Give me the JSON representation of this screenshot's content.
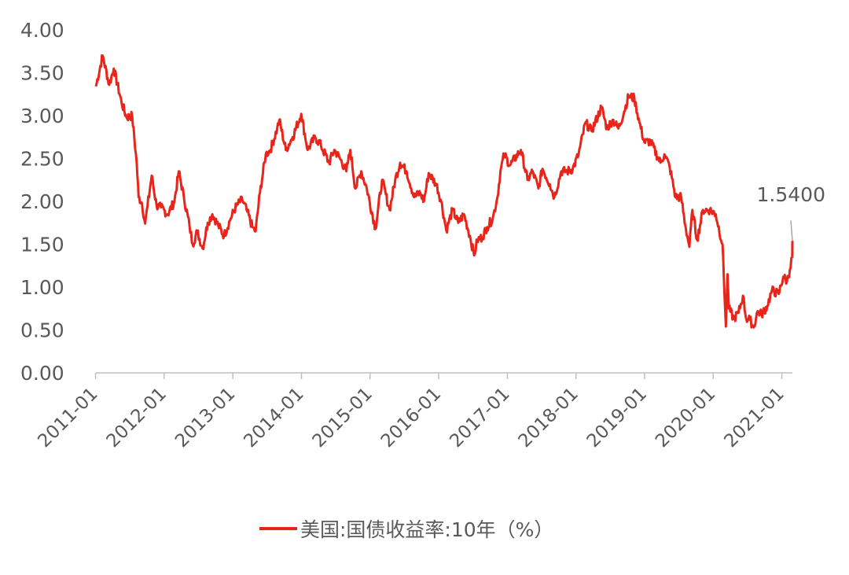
{
  "colors": {
    "series": "#e8251b",
    "axis": "#bfbfbf",
    "text": "#595959",
    "annotation_line": "#a6a6a6"
  },
  "chart_data": {
    "type": "line",
    "title": "",
    "xlabel": "",
    "ylabel": "",
    "ylim": [
      0,
      4
    ],
    "xlim": [
      "2011-01-03",
      "2021-02-26"
    ],
    "yticks": [
      "0.00",
      "0.50",
      "1.00",
      "1.50",
      "2.00",
      "2.50",
      "3.00",
      "3.50",
      "4.00"
    ],
    "xticks": [
      "2011-01",
      "2012-01",
      "2013-01",
      "2014-01",
      "2015-01",
      "2016-01",
      "2017-01",
      "2018-01",
      "2019-01",
      "2020-01",
      "2021-01"
    ],
    "grid": false,
    "legend": "bottom",
    "series": [
      {
        "name": "美国:国债收益率:10年（%）",
        "x": [
          "2011-01-03",
          "2011-02-08",
          "2011-03-15",
          "2011-04-08",
          "2011-05-20",
          "2011-06-15",
          "2011-07-15",
          "2011-08-08",
          "2011-08-18",
          "2011-09-05",
          "2011-09-22",
          "2011-10-05",
          "2011-10-27",
          "2011-11-22",
          "2011-12-15",
          "2012-01-20",
          "2012-02-25",
          "2012-03-19",
          "2012-04-15",
          "2012-05-15",
          "2012-06-01",
          "2012-06-25",
          "2012-07-24",
          "2012-08-20",
          "2012-09-14",
          "2012-10-15",
          "2012-11-15",
          "2012-12-20",
          "2013-01-20",
          "2013-02-20",
          "2013-03-15",
          "2013-04-15",
          "2013-05-02",
          "2013-05-25",
          "2013-06-25",
          "2013-07-20",
          "2013-08-25",
          "2013-09-05",
          "2013-10-10",
          "2013-11-15",
          "2013-12-31",
          "2014-02-03",
          "2014-03-15",
          "2014-04-15",
          "2014-05-28",
          "2014-06-25",
          "2014-07-25",
          "2014-08-28",
          "2014-09-18",
          "2014-10-15",
          "2014-11-15",
          "2014-12-15",
          "2015-01-30",
          "2015-03-06",
          "2015-04-15",
          "2015-05-15",
          "2015-06-10",
          "2015-07-15",
          "2015-08-24",
          "2015-09-25",
          "2015-10-15",
          "2015-11-09",
          "2015-12-20",
          "2016-01-15",
          "2016-02-11",
          "2016-03-15",
          "2016-04-15",
          "2016-05-15",
          "2016-06-15",
          "2016-07-08",
          "2016-07-25",
          "2016-08-20",
          "2016-09-15",
          "2016-10-15",
          "2016-11-09",
          "2016-11-25",
          "2016-12-15",
          "2017-01-15",
          "2017-03-14",
          "2017-04-18",
          "2017-05-15",
          "2017-06-15",
          "2017-07-07",
          "2017-08-15",
          "2017-09-08",
          "2017-10-15",
          "2017-11-15",
          "2017-12-15",
          "2018-01-15",
          "2018-02-21",
          "2018-03-25",
          "2018-05-17",
          "2018-06-15",
          "2018-07-15",
          "2018-08-15",
          "2018-09-15",
          "2018-10-08",
          "2018-11-08",
          "2018-12-05",
          "2018-12-31",
          "2019-02-01",
          "2019-03-27",
          "2019-04-17",
          "2019-05-15",
          "2019-06-15",
          "2019-07-15",
          "2019-08-06",
          "2019-08-28",
          "2019-09-13",
          "2019-10-08",
          "2019-11-08",
          "2019-12-15",
          "2020-01-15",
          "2020-02-20",
          "2020-03-09",
          "2020-03-18",
          "2020-03-25",
          "2020-04-20",
          "2020-05-15",
          "2020-06-08",
          "2020-06-25",
          "2020-07-15",
          "2020-08-04",
          "2020-08-25",
          "2020-09-15",
          "2020-10-15",
          "2020-11-09",
          "2020-12-15",
          "2021-01-08",
          "2021-01-28",
          "2021-02-12",
          "2021-02-25",
          "2021-02-26"
        ],
        "values": [
          3.34,
          3.7,
          3.36,
          3.55,
          3.15,
          2.98,
          3.0,
          2.45,
          2.05,
          1.98,
          1.74,
          1.95,
          2.3,
          1.95,
          1.93,
          1.85,
          2.0,
          2.35,
          2.05,
          1.72,
          1.5,
          1.65,
          1.45,
          1.75,
          1.85,
          1.72,
          1.6,
          1.8,
          1.95,
          2.02,
          1.9,
          1.7,
          1.65,
          2.1,
          2.55,
          2.6,
          2.85,
          2.95,
          2.6,
          2.75,
          3.02,
          2.6,
          2.75,
          2.65,
          2.45,
          2.6,
          2.5,
          2.35,
          2.6,
          2.15,
          2.35,
          2.15,
          1.68,
          2.25,
          1.9,
          2.25,
          2.45,
          2.35,
          2.05,
          2.1,
          2.0,
          2.33,
          2.2,
          2.0,
          1.66,
          1.9,
          1.75,
          1.85,
          1.6,
          1.37,
          1.55,
          1.58,
          1.7,
          1.8,
          2.05,
          2.35,
          2.55,
          2.42,
          2.6,
          2.25,
          2.35,
          2.15,
          2.38,
          2.2,
          2.05,
          2.35,
          2.35,
          2.38,
          2.55,
          2.92,
          2.82,
          3.1,
          2.85,
          2.95,
          2.85,
          3.05,
          3.23,
          3.2,
          2.92,
          2.69,
          2.7,
          2.45,
          2.55,
          2.4,
          2.05,
          2.05,
          1.72,
          1.47,
          1.9,
          1.55,
          1.9,
          1.9,
          1.85,
          1.5,
          0.54,
          1.15,
          0.75,
          0.63,
          0.7,
          0.9,
          0.63,
          0.62,
          0.53,
          0.72,
          0.68,
          0.78,
          0.96,
          0.92,
          1.12,
          1.07,
          1.2,
          1.35,
          1.54
        ]
      }
    ],
    "annotations": [
      {
        "text": "1.5400"
      }
    ]
  }
}
